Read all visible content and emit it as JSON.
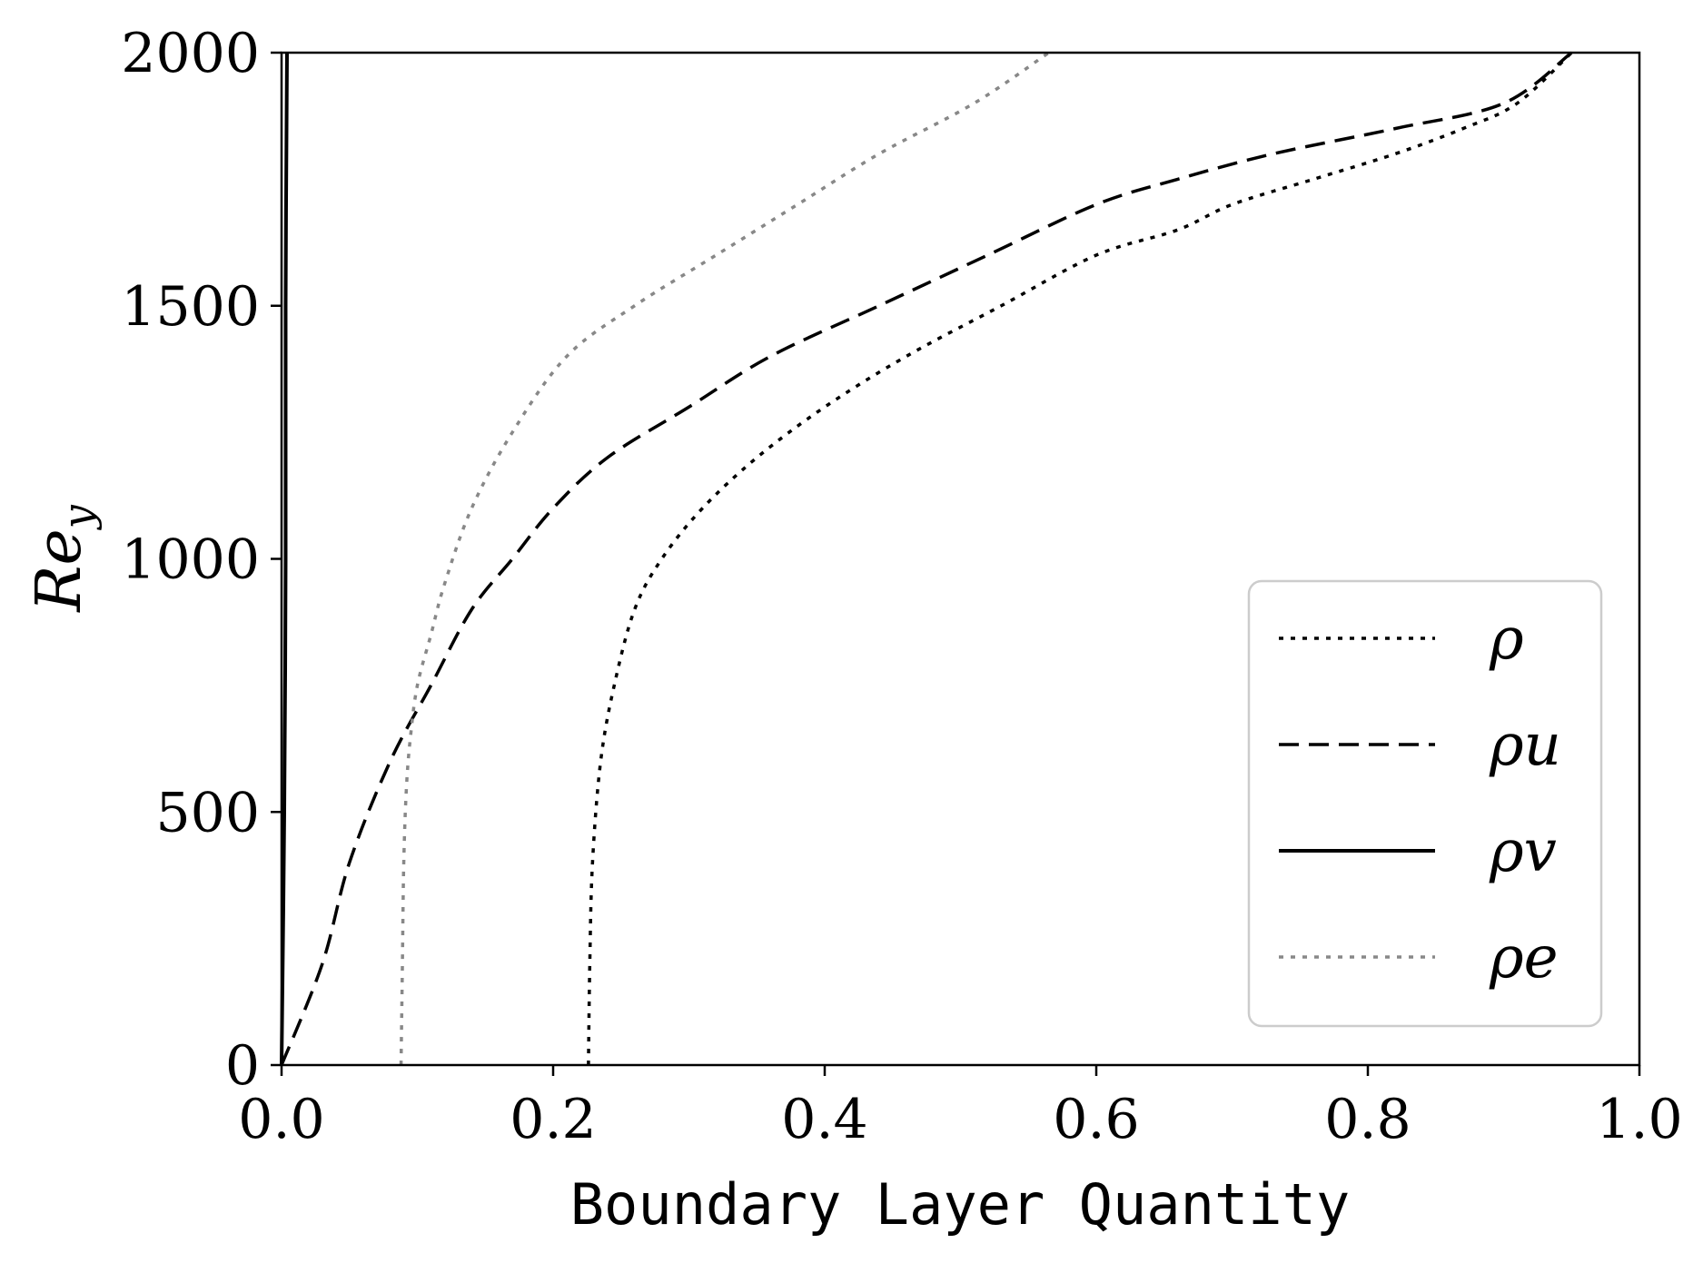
{
  "chart_data": {
    "type": "line",
    "title": "",
    "xlabel": "Boundary Layer Quantity",
    "ylabel": "Re",
    "ylabel_subscript": "y",
    "xlim": [
      0.0,
      1.0
    ],
    "ylim": [
      0,
      2000
    ],
    "xticks": [
      "0.0",
      "0.2",
      "0.4",
      "0.6",
      "0.8",
      "1.0"
    ],
    "yticks": [
      "0",
      "500",
      "1000",
      "1500",
      "2000"
    ],
    "grid": false,
    "legend_position": "lower-right",
    "series": [
      {
        "name": "ρ",
        "style": "dotted",
        "color": "#000000",
        "points": [
          [
            0.226,
            0
          ],
          [
            0.227,
            200
          ],
          [
            0.229,
            400
          ],
          [
            0.235,
            600
          ],
          [
            0.245,
            750
          ],
          [
            0.26,
            900
          ],
          [
            0.28,
            1000
          ],
          [
            0.31,
            1100
          ],
          [
            0.35,
            1200
          ],
          [
            0.4,
            1300
          ],
          [
            0.46,
            1400
          ],
          [
            0.53,
            1500
          ],
          [
            0.6,
            1600
          ],
          [
            0.66,
            1650
          ],
          [
            0.7,
            1700
          ],
          [
            0.76,
            1750
          ],
          [
            0.82,
            1800
          ],
          [
            0.87,
            1850
          ],
          [
            0.91,
            1900
          ],
          [
            0.95,
            2000
          ]
        ]
      },
      {
        "name": "ρu",
        "style": "dashed",
        "color": "#000000",
        "points": [
          [
            0.0,
            0
          ],
          [
            0.03,
            200
          ],
          [
            0.05,
            400
          ],
          [
            0.08,
            600
          ],
          [
            0.11,
            750
          ],
          [
            0.14,
            900
          ],
          [
            0.17,
            1000
          ],
          [
            0.2,
            1100
          ],
          [
            0.24,
            1200
          ],
          [
            0.3,
            1300
          ],
          [
            0.36,
            1400
          ],
          [
            0.44,
            1500
          ],
          [
            0.52,
            1600
          ],
          [
            0.6,
            1700
          ],
          [
            0.66,
            1750
          ],
          [
            0.73,
            1800
          ],
          [
            0.82,
            1850
          ],
          [
            0.9,
            1900
          ],
          [
            0.95,
            2000
          ]
        ]
      },
      {
        "name": "ρv",
        "style": "solid",
        "color": "#000000",
        "points": [
          [
            0.0,
            0
          ],
          [
            0.002,
            500
          ],
          [
            0.003,
            1000
          ],
          [
            0.003,
            1500
          ],
          [
            0.004,
            2000
          ]
        ]
      },
      {
        "name": "ρe",
        "style": "dotted",
        "color": "#888888",
        "points": [
          [
            0.088,
            0
          ],
          [
            0.089,
            200
          ],
          [
            0.09,
            400
          ],
          [
            0.092,
            550
          ],
          [
            0.095,
            650
          ],
          [
            0.1,
            750
          ],
          [
            0.11,
            850
          ],
          [
            0.12,
            950
          ],
          [
            0.14,
            1100
          ],
          [
            0.17,
            1250
          ],
          [
            0.21,
            1400
          ],
          [
            0.26,
            1500
          ],
          [
            0.32,
            1600
          ],
          [
            0.38,
            1700
          ],
          [
            0.44,
            1800
          ],
          [
            0.51,
            1900
          ],
          [
            0.565,
            2000
          ]
        ]
      }
    ]
  }
}
